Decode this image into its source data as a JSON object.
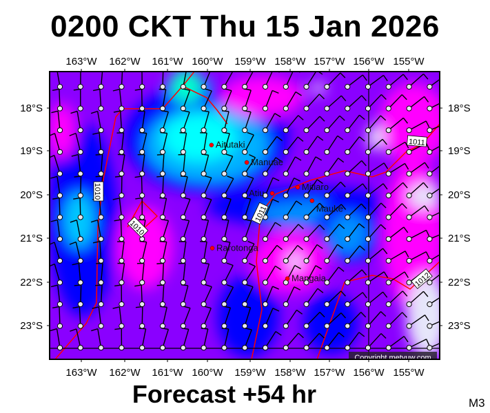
{
  "title": "0200 CKT Thu 15 Jan 2026",
  "forecast": "Forecast +54 hr",
  "model_tag": "M3",
  "copyright": "Copyright metvuw.com",
  "lon_ticks": [
    "163°W",
    "162°W",
    "161°W",
    "160°W",
    "159°W",
    "158°W",
    "157°W",
    "156°W",
    "155°W"
  ],
  "lat_ticks": [
    "18°S",
    "19°S",
    "20°S",
    "21°S",
    "22°S",
    "23°S"
  ],
  "places": [
    {
      "name": "Aitutaki",
      "lon": -159.83,
      "lat": -18.85
    },
    {
      "name": "Manuae",
      "lon": -158.97,
      "lat": -19.25
    },
    {
      "name": "Atiu",
      "lon": -158.35,
      "lat": -19.96
    },
    {
      "name": "Mitiaro",
      "lon": -157.73,
      "lat": -19.82
    },
    {
      "name": "Mauke",
      "lon": -157.38,
      "lat": -20.13
    },
    {
      "name": "Rarotonga",
      "lon": -159.81,
      "lat": -21.22
    },
    {
      "name": "Mangaia",
      "lon": -157.98,
      "lat": -21.92
    }
  ],
  "isobar_labels": [
    "1010",
    "1010",
    "1011",
    "1011",
    "1012"
  ],
  "colors": {
    "place_marker": "#ff0000",
    "isobar": "#ff0000",
    "cyan": "#00ffff",
    "blue": "#0000ff",
    "purple": "#8a00ff",
    "magenta": "#ff00ff",
    "lavender": "#e6e6fa"
  }
}
